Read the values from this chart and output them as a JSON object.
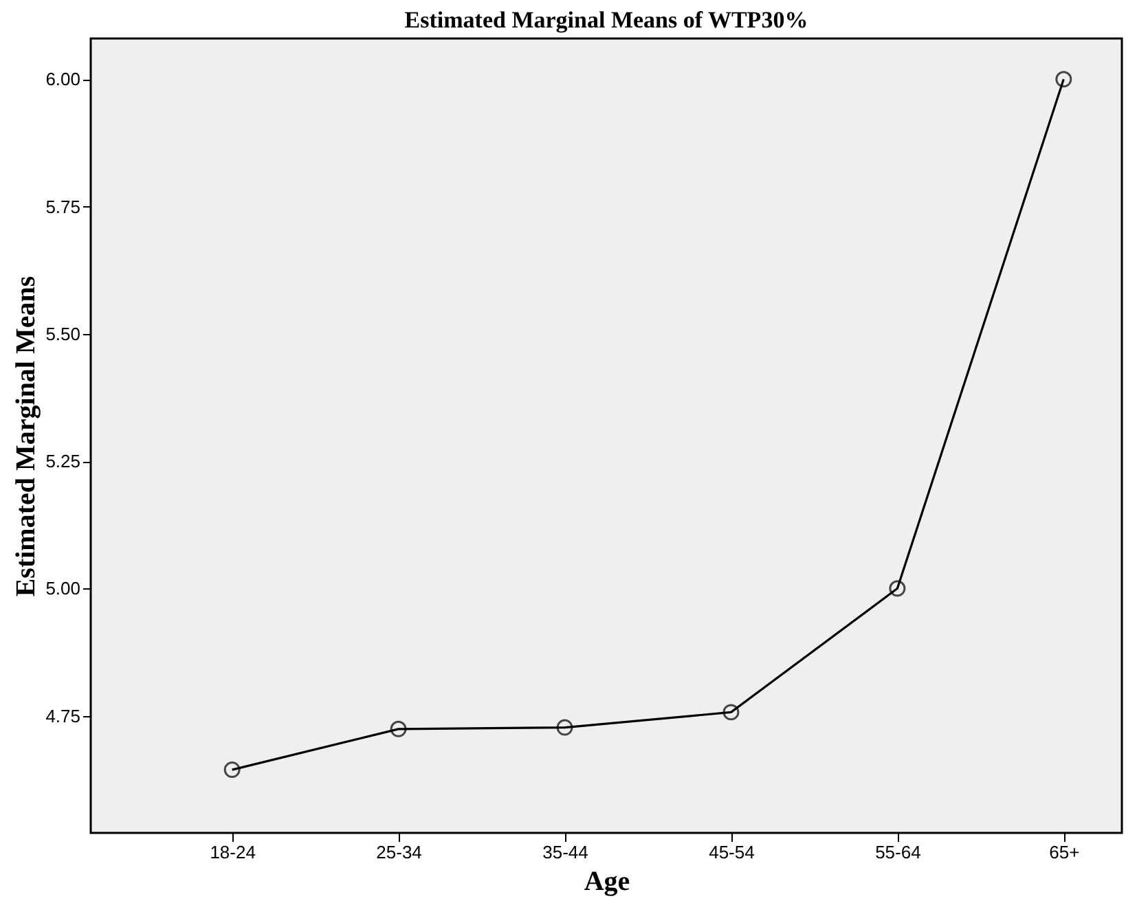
{
  "chart_data": {
    "type": "line",
    "title": "Estimated Marginal Means of WTP30%",
    "xlabel": "Age",
    "ylabel": "Estimated Marginal Means",
    "categories": [
      "18-24",
      "25-34",
      "35-44",
      "45-54",
      "55-64",
      "65+"
    ],
    "series": [
      {
        "color": "#000000",
        "values": [
          4.644,
          4.724,
          4.727,
          4.757,
          5.0,
          6.0
        ]
      }
    ],
    "ylim": [
      4.52,
      6.08
    ],
    "yticks": [
      {
        "value": 4.75,
        "label": "4.75"
      },
      {
        "value": 5.0,
        "label": "5.00"
      },
      {
        "value": 5.25,
        "label": "5.25"
      },
      {
        "value": 5.5,
        "label": "5.50"
      },
      {
        "value": 5.75,
        "label": "5.75"
      },
      {
        "value": 6.0,
        "label": "6.00"
      }
    ],
    "grid": false,
    "legend": false,
    "marker": "circle",
    "line_style": "solid"
  }
}
